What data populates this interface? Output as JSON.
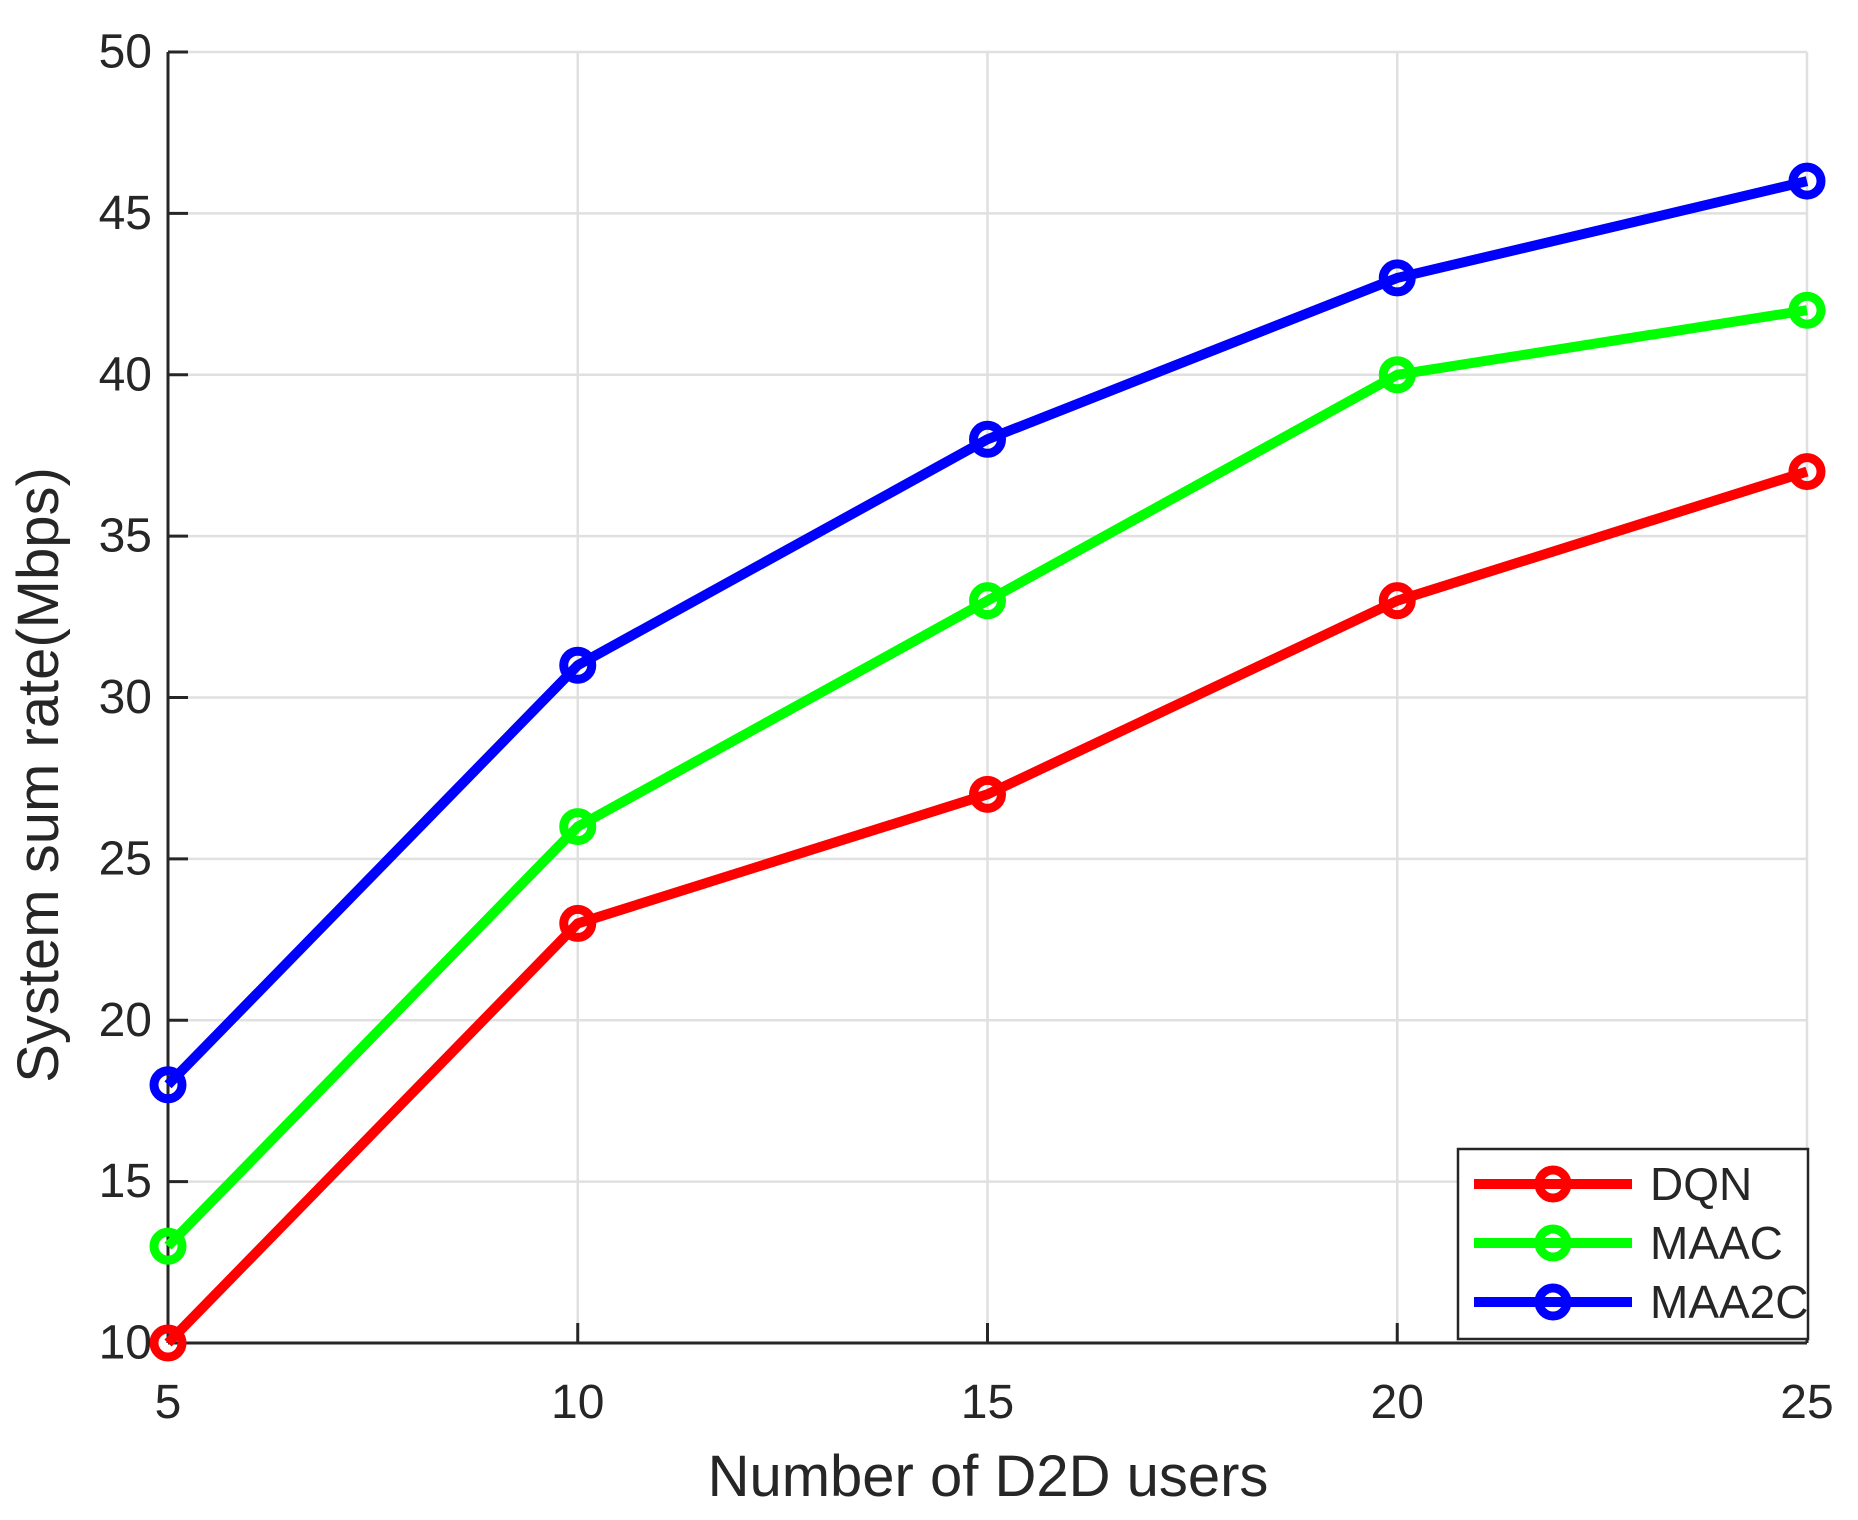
{
  "chart_data": {
    "type": "line",
    "title": "",
    "xlabel": "Number of D2D users",
    "ylabel": "System sum rate(Mbps)",
    "x": [
      5,
      10,
      15,
      20,
      25
    ],
    "x_ticks": [
      "5",
      "10",
      "15",
      "20",
      "25"
    ],
    "y_ticks": [
      "10",
      "15",
      "20",
      "25",
      "30",
      "35",
      "40",
      "45",
      "50"
    ],
    "xlim": [
      5,
      25
    ],
    "ylim": [
      10,
      50
    ],
    "grid": true,
    "legend_position": "bottom-right",
    "series": [
      {
        "name": "DQN",
        "color": "#FF0000",
        "values": [
          10,
          23,
          27,
          33,
          37
        ]
      },
      {
        "name": "MAAC",
        "color": "#00FF00",
        "values": [
          13,
          26,
          33,
          40,
          42
        ]
      },
      {
        "name": "MAA2C",
        "color": "#0000FF",
        "values": [
          18,
          31,
          38,
          43,
          46
        ]
      }
    ],
    "colors": {
      "axis": "#262626",
      "grid": "#E0E0E0",
      "background": "#FFFFFF"
    },
    "marker": "open-circle"
  }
}
